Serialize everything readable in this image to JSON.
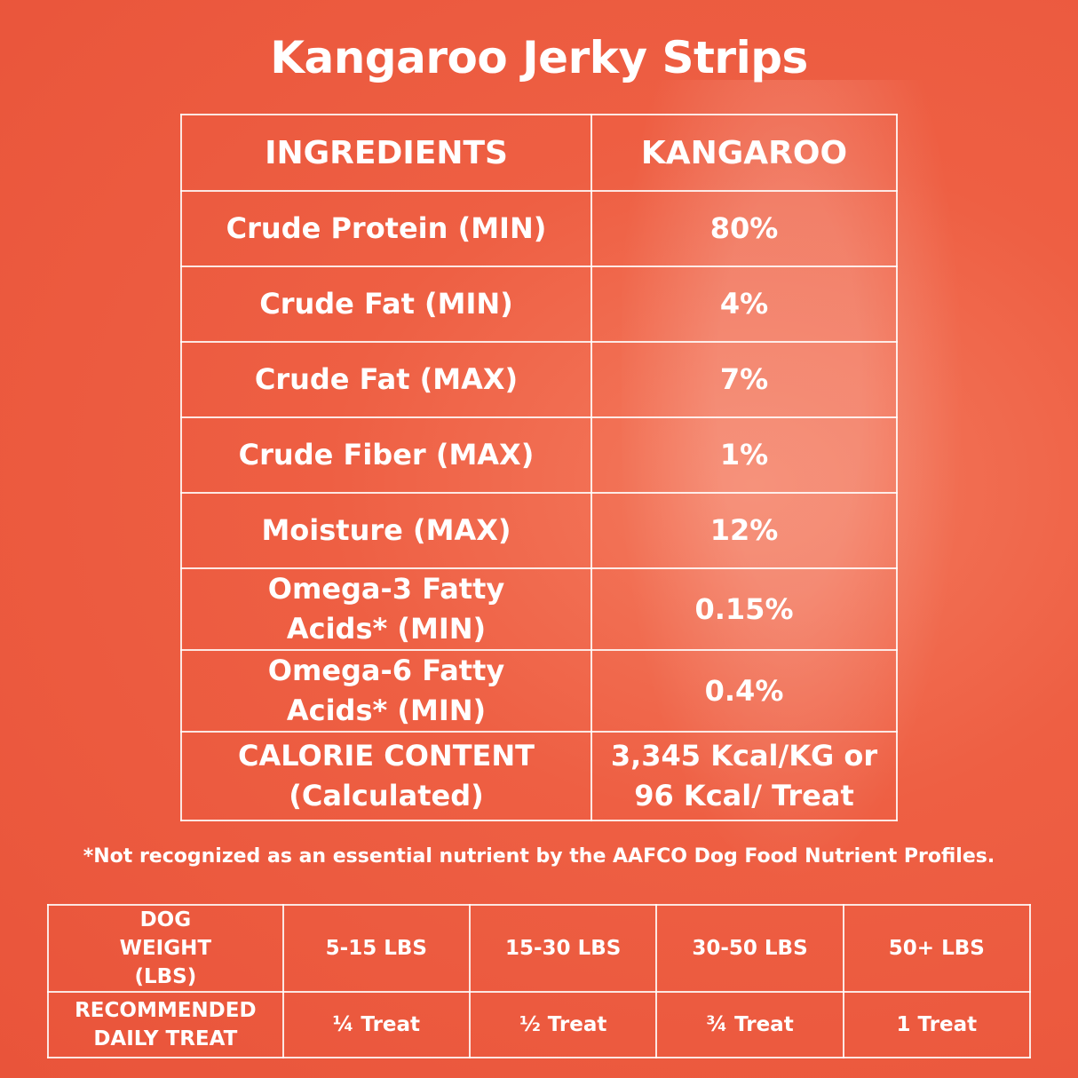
{
  "title": "Kangaroo Jerky Strips",
  "nutrition": {
    "headers": [
      "INGREDIENTS",
      "KANGAROO"
    ],
    "rows": [
      {
        "label": "Crude Protein (MIN)",
        "value": "80%"
      },
      {
        "label": "Crude Fat (MIN)",
        "value": "4%"
      },
      {
        "label": "Crude Fat (MAX)",
        "value": "7%"
      },
      {
        "label": "Crude Fiber (MAX)",
        "value": "1%"
      },
      {
        "label": "Moisture (MAX)",
        "value": "12%"
      },
      {
        "label": "Omega-3 Fatty Acids* (MIN)",
        "value": "0.15%"
      },
      {
        "label": "Omega-6 Fatty Acids* (MIN)",
        "value": "0.4%"
      },
      {
        "label": "CALORIE CONTENT (Calculated)",
        "value": "3,345 Kcal/KG or 96 Kcal/ Treat"
      }
    ]
  },
  "footnote": "*Not recognized as an essential nutrient by the AAFCO Dog Food Nutrient Profiles.",
  "dosage": {
    "weight_label": "DOG WEIGHT (LBS)",
    "weights": [
      "5-15 LBS",
      "15-30 LBS",
      "30-50 LBS",
      "50+ LBS"
    ],
    "treat_label": "RECOMMENDED DAILY TREAT",
    "treats": [
      "¼ Treat",
      "½ Treat",
      "¾ Treat",
      "1 Treat"
    ]
  },
  "colors": {
    "background": "#ee5f43",
    "text": "#ffffff"
  }
}
